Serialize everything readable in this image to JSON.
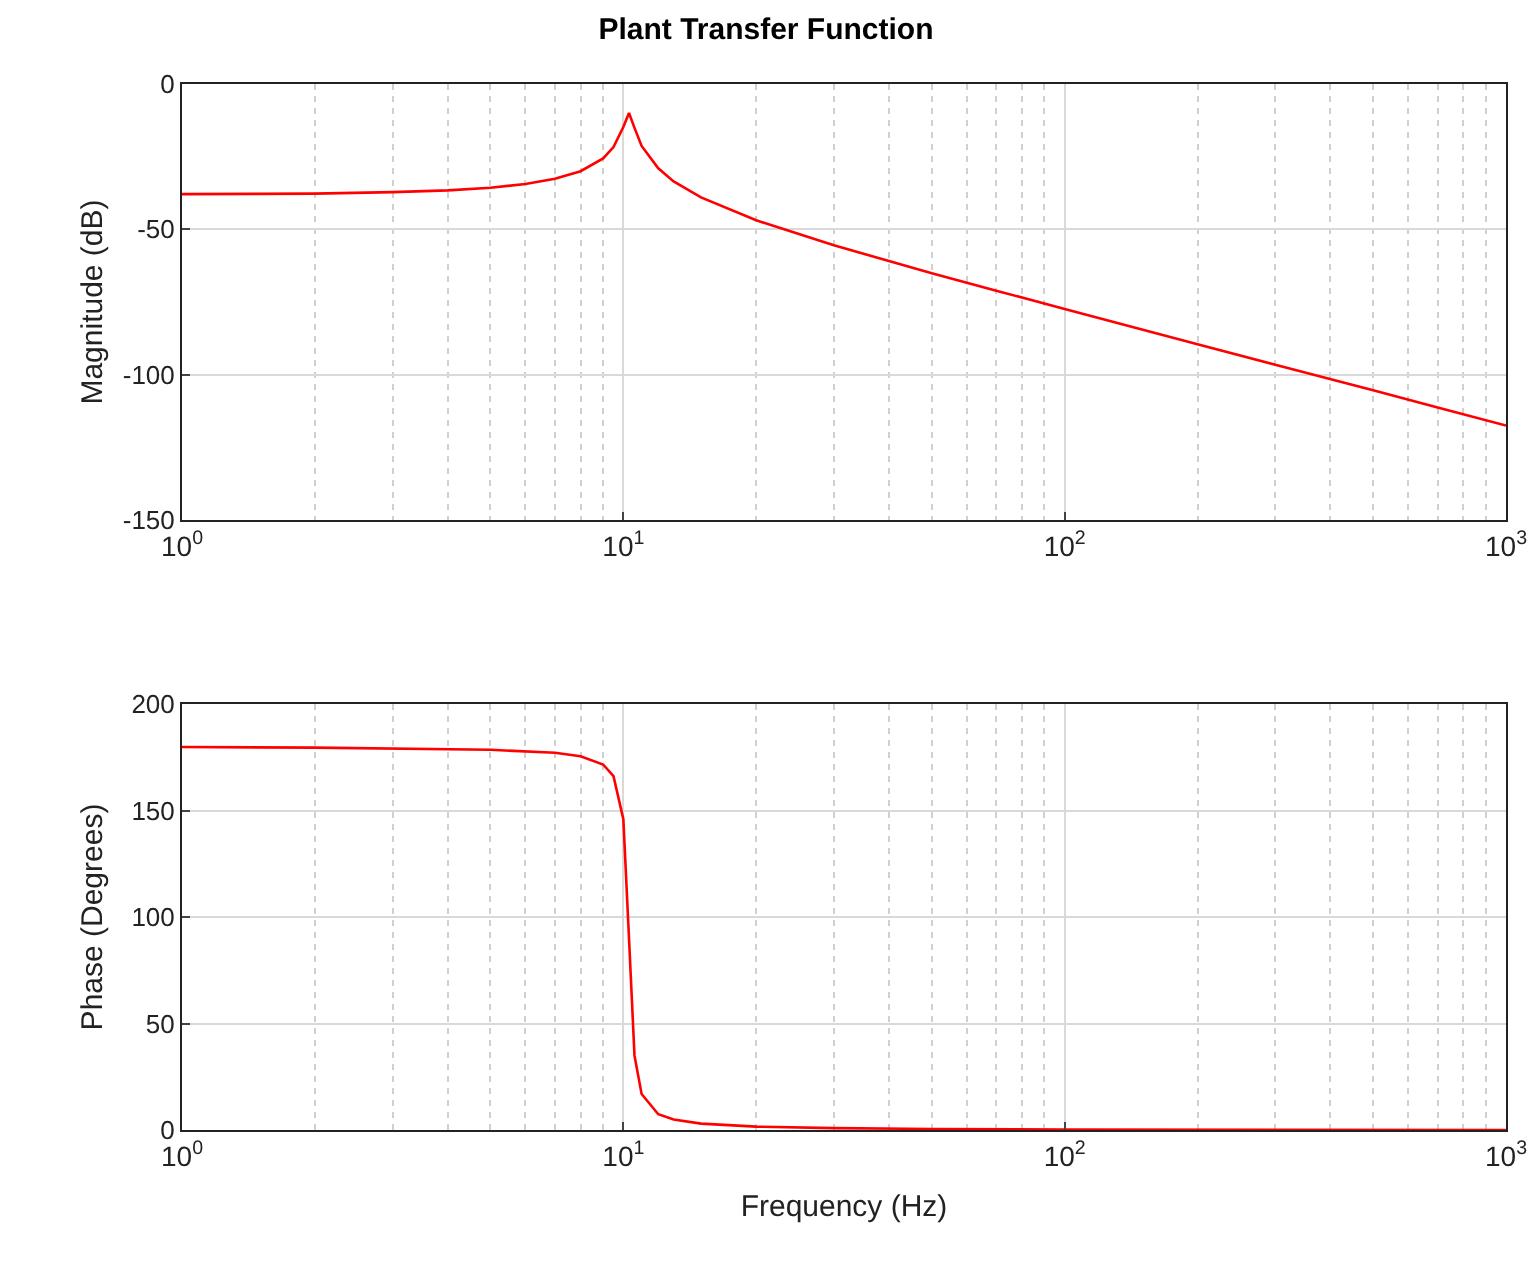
{
  "chart_data": [
    {
      "type": "line",
      "title": "Plant Transfer Function",
      "ylabel": "Magnitude (dB)",
      "log": "x",
      "grid": true,
      "x": [
        1,
        2,
        3,
        4,
        5,
        6,
        7,
        8,
        9,
        9.5,
        10,
        10.3,
        10.6,
        11,
        12,
        13,
        15,
        20,
        30,
        50,
        70,
        100,
        200,
        300,
        500,
        700,
        1000
      ],
      "series": [
        {
          "color": "#ff0000",
          "values": [
            -37.9,
            -37.7,
            -37.2,
            -36.6,
            -35.7,
            -34.4,
            -32.6,
            -30.0,
            -25.6,
            -21.7,
            -14.8,
            -10.0,
            -15.1,
            -21.3,
            -29.0,
            -33.5,
            -39.0,
            -46.9,
            -55.5,
            -65.1,
            -71.1,
            -77.4,
            -89.5,
            -96.6,
            -105.4,
            -111.3,
            -117.5
          ]
        }
      ],
      "xlim": [
        1,
        1000
      ],
      "xticks": [
        {
          "value": 1,
          "label": "10$^{0}$"
        },
        {
          "value": 10,
          "label": "10$^{1}$"
        },
        {
          "value": 100,
          "label": "10$^{2}$"
        },
        {
          "value": 1000,
          "label": "10$^{3}$"
        }
      ],
      "ylim": [
        -150,
        0
      ],
      "yticks": [
        -150,
        -100,
        -50,
        0
      ]
    },
    {
      "type": "line",
      "xlabel": "Frequency (Hz)",
      "ylabel": "Phase (Degrees)",
      "log": "x",
      "grid": true,
      "x": [
        1,
        2,
        5,
        7,
        8,
        9,
        9.5,
        10,
        10.3,
        10.6,
        11,
        12,
        13,
        15,
        20,
        30,
        50,
        100,
        1000
      ],
      "series": [
        {
          "color": "#ff0000",
          "values": [
            179.8,
            179.5,
            178.5,
            177.1,
            175.5,
            171.6,
            166.1,
            145.9,
            90,
            34.9,
            16.9,
            7.4,
            4.9,
            3.0,
            1.6,
            0.9,
            0.5,
            0.2,
            0
          ]
        }
      ],
      "xlim": [
        1,
        1000
      ],
      "xticks": [
        {
          "value": 1,
          "label": "10$^{0}$"
        },
        {
          "value": 10,
          "label": "10$^{1}$"
        },
        {
          "value": 100,
          "label": "10$^{2}$"
        },
        {
          "value": 1000,
          "label": "10$^{3}$"
        }
      ],
      "ylim": [
        0,
        200
      ],
      "yticks": [
        0,
        50,
        100,
        150,
        200
      ]
    }
  ]
}
